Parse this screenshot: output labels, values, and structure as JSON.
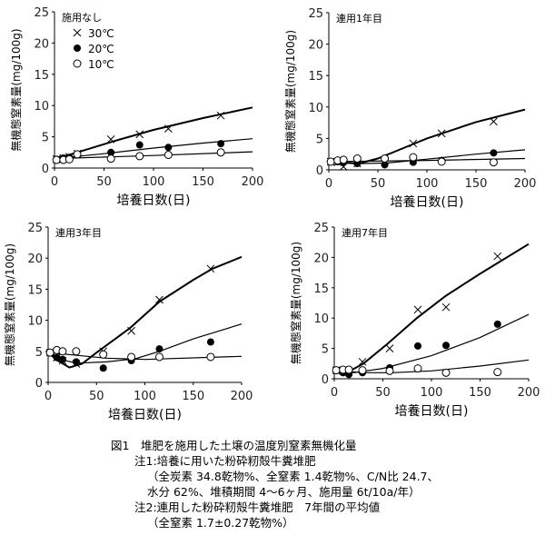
{
  "chart_data": [
    {
      "type": "scatter",
      "title": "施用なし",
      "xlabel": "培養日数(日)",
      "ylabel": "無機態窒素量(mg/100g)",
      "xlim": [
        0,
        200
      ],
      "ylim": [
        0,
        25
      ],
      "xticks": [
        0,
        50,
        100,
        150,
        200
      ],
      "yticks": [
        0,
        5,
        10,
        15,
        20,
        25
      ],
      "legend": {
        "placement": "top-left",
        "entries": [
          "30℃",
          "20℃",
          "10℃"
        ]
      },
      "x": [
        2,
        9,
        15,
        23,
        57,
        86,
        115,
        168
      ],
      "series": [
        {
          "name": "30℃",
          "marker": "x",
          "values": [
            1.4,
            1.6,
            1.8,
            2.3,
            4.6,
            5.4,
            6.3,
            8.4
          ],
          "fit": [
            [
              0,
              1.4
            ],
            [
              25,
              2.6
            ],
            [
              60,
              4.3
            ],
            [
              100,
              6.1
            ],
            [
              150,
              8.0
            ],
            [
              200,
              9.7
            ]
          ]
        },
        {
          "name": "20℃",
          "marker": "filled-circle",
          "values": [
            1.4,
            1.6,
            1.7,
            2.2,
            2.5,
            3.7,
            3.3,
            3.9
          ],
          "fit": [
            [
              0,
              1.5
            ],
            [
              50,
              2.3
            ],
            [
              100,
              3.2
            ],
            [
              150,
              4.0
            ],
            [
              200,
              4.7
            ]
          ]
        },
        {
          "name": "10℃",
          "marker": "open-circle",
          "values": [
            1.3,
            1.3,
            1.4,
            2.2,
            1.5,
            1.9,
            2.1,
            2.5
          ],
          "fit": [
            [
              0,
              1.5
            ],
            [
              100,
              2.0
            ],
            [
              200,
              2.6
            ]
          ]
        }
      ]
    },
    {
      "type": "scatter",
      "title": "連用1年目",
      "xlabel": "培養日数(日)",
      "ylabel": "無機態窒素量(mg/100g)",
      "xlim": [
        0,
        200
      ],
      "ylim": [
        0,
        25
      ],
      "xticks": [
        0,
        50,
        100,
        150,
        200
      ],
      "yticks": [
        0,
        5,
        10,
        15,
        20,
        25
      ],
      "x": [
        2,
        9,
        15,
        29,
        57,
        86,
        115,
        168
      ],
      "series": [
        {
          "name": "30℃",
          "marker": "x",
          "values": [
            1.3,
            1.2,
            0.5,
            1.0,
            1.5,
            4.2,
            5.8,
            7.7
          ],
          "fit": [
            [
              0,
              1.3
            ],
            [
              30,
              1.0
            ],
            [
              50,
              1.8
            ],
            [
              75,
              3.4
            ],
            [
              100,
              5.0
            ],
            [
              150,
              7.6
            ],
            [
              200,
              9.6
            ]
          ]
        },
        {
          "name": "20℃",
          "marker": "filled-circle",
          "values": [
            1.3,
            1.3,
            1.2,
            1.0,
            0.8,
            1.2,
            1.5,
            2.7
          ],
          "fit": [
            [
              0,
              1.3
            ],
            [
              30,
              1.0
            ],
            [
              60,
              1.1
            ],
            [
              100,
              1.7
            ],
            [
              150,
              2.5
            ],
            [
              200,
              3.2
            ]
          ]
        },
        {
          "name": "10℃",
          "marker": "open-circle",
          "values": [
            1.3,
            1.5,
            1.6,
            1.8,
            1.8,
            2.0,
            1.3,
            1.2
          ],
          "fit": [
            [
              0,
              1.3
            ],
            [
              100,
              1.5
            ],
            [
              200,
              1.8
            ]
          ]
        }
      ]
    },
    {
      "type": "scatter",
      "title": "連用3年目",
      "xlabel": "培養日数(日)",
      "ylabel": "無機態窒素量(mg/100g)",
      "xlim": [
        0,
        200
      ],
      "ylim": [
        0,
        25
      ],
      "xticks": [
        0,
        50,
        100,
        150,
        200
      ],
      "yticks": [
        0,
        5,
        10,
        15,
        20,
        25
      ],
      "x": [
        2,
        9,
        15,
        29,
        57,
        86,
        115,
        168
      ],
      "series": [
        {
          "name": "30℃",
          "marker": "x",
          "values": [
            4.8,
            4.0,
            3.5,
            3.0,
            5.0,
            8.3,
            13.3,
            18.3
          ],
          "fit": [
            [
              0,
              4.8
            ],
            [
              10,
              3.5
            ],
            [
              22,
              2.4
            ],
            [
              35,
              3.0
            ],
            [
              50,
              4.8
            ],
            [
              85,
              8.8
            ],
            [
              115,
              13.0
            ],
            [
              150,
              16.5
            ],
            [
              170,
              18.3
            ],
            [
              200,
              20.2
            ]
          ]
        },
        {
          "name": "20℃",
          "marker": "filled-circle",
          "values": [
            4.8,
            4.0,
            3.7,
            3.3,
            2.3,
            3.5,
            5.4,
            6.5
          ],
          "fit": [
            [
              0,
              4.8
            ],
            [
              15,
              3.6
            ],
            [
              30,
              3.1
            ],
            [
              60,
              3.3
            ],
            [
              90,
              3.8
            ],
            [
              115,
              5.0
            ],
            [
              150,
              7.0
            ],
            [
              200,
              9.4
            ]
          ]
        },
        {
          "name": "10℃",
          "marker": "open-circle",
          "values": [
            4.8,
            5.2,
            5.0,
            5.0,
            4.5,
            4.1,
            4.1,
            4.1
          ],
          "fit": [
            [
              0,
              4.8
            ],
            [
              20,
              4.5
            ],
            [
              60,
              3.9
            ],
            [
              100,
              3.7
            ],
            [
              200,
              4.2
            ]
          ]
        }
      ]
    },
    {
      "type": "scatter",
      "title": "連用7年目",
      "xlabel": "培養日数(日)",
      "ylabel": "無機態窒素量(mg/100g)",
      "xlim": [
        0,
        200
      ],
      "ylim": [
        0,
        25
      ],
      "xticks": [
        0,
        50,
        100,
        150,
        200
      ],
      "yticks": [
        0,
        5,
        10,
        15,
        20,
        25
      ],
      "x": [
        2,
        9,
        15,
        29,
        57,
        86,
        115,
        168
      ],
      "series": [
        {
          "name": "30℃",
          "marker": "x",
          "values": [
            1.4,
            1.3,
            1.2,
            2.8,
            5.0,
            11.4,
            11.8,
            20.2
          ],
          "fit": [
            [
              0,
              1.4
            ],
            [
              15,
              1.2
            ],
            [
              30,
              2.5
            ],
            [
              55,
              5.8
            ],
            [
              85,
              10.0
            ],
            [
              115,
              13.7
            ],
            [
              150,
              17.3
            ],
            [
              200,
              22.2
            ]
          ]
        },
        {
          "name": "20℃",
          "marker": "filled-circle",
          "values": [
            1.4,
            1.0,
            0.7,
            1.0,
            1.8,
            5.4,
            5.5,
            9.0
          ],
          "fit": [
            [
              0,
              1.4
            ],
            [
              20,
              1.0
            ],
            [
              50,
              1.7
            ],
            [
              100,
              3.8
            ],
            [
              150,
              6.8
            ],
            [
              200,
              10.6
            ]
          ]
        },
        {
          "name": "10℃",
          "marker": "open-circle",
          "values": [
            1.4,
            1.5,
            1.5,
            1.4,
            1.3,
            1.7,
            1.0,
            1.1
          ],
          "fit": [
            [
              0,
              1.4
            ],
            [
              30,
              1.0
            ],
            [
              60,
              1.0
            ],
            [
              100,
              1.3
            ],
            [
              150,
              2.1
            ],
            [
              200,
              3.1
            ]
          ]
        }
      ]
    }
  ],
  "caption": {
    "title": "図1　堆肥を施用した土壌の温度別窒素無機化量",
    "note1": "注1:培養に用いた粉砕籾殻牛糞堆肥",
    "note1_detail1": "（全炭素 34.8乾物%、全窒素 1.4乾物%、C/N比 24.7、",
    "note1_detail2": "水分 62%、堆積期間 4～6ヶ月、施用量 6t/10a/年）",
    "note2": "注2:連用した粉砕籾殻牛糞堆肥　7年間の平均値",
    "note2_detail": "（全窒素 1.7±0.27乾物%）"
  }
}
